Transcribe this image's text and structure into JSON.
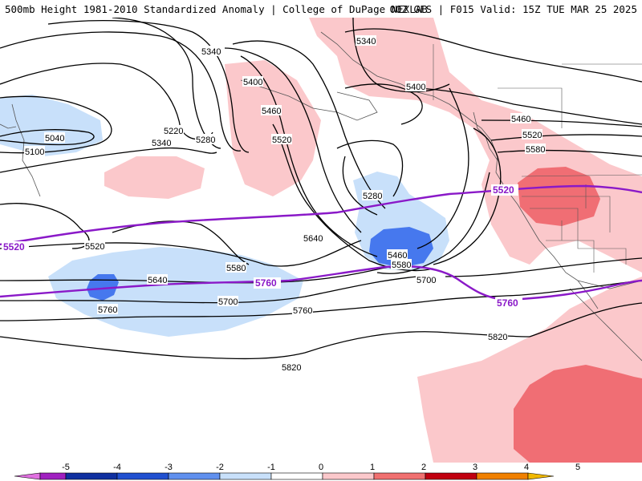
{
  "header": {
    "title_left": "500mb Height 1981-2010 Standardized Anomaly | College of DuPage NEXLAB",
    "title_right": "00Z GFS | F015 Valid: 15Z TUE MAR 25 2025"
  },
  "map": {
    "height_contours": [
      "5040",
      "5100",
      "5220",
      "5280",
      "5340",
      "5340",
      "5340",
      "5400",
      "5400",
      "5460",
      "5460",
      "5520",
      "5520",
      "5580",
      "5580",
      "5640",
      "5640",
      "5700",
      "5700",
      "5760",
      "5760",
      "5820",
      "5820",
      "5280",
      "5460",
      "5520",
      "5580"
    ],
    "reference_lines": {
      "line_5520": "5520",
      "line_5760": "5760",
      "color": "#8a19c8"
    },
    "anomaly_colors": {
      "neg_strong": "#1e50dc",
      "neg_moderate": "#4678ee",
      "neg_weak": "#c8e0fa",
      "pos_weak": "#fbc8cb",
      "pos_moderate": "#f06e74"
    }
  },
  "colorbar": {
    "ticks": [
      "-5",
      "-4",
      "-3",
      "-2",
      "-1",
      "0",
      "1",
      "2",
      "3",
      "4",
      "5"
    ],
    "colors": [
      "#e070e0",
      "#a020c0",
      "#1030a0",
      "#2050d0",
      "#6090ee",
      "#c8e0fa",
      "#ffffff",
      "#fbc8cb",
      "#f07070",
      "#c00010",
      "#f08000",
      "#f0b800"
    ]
  }
}
